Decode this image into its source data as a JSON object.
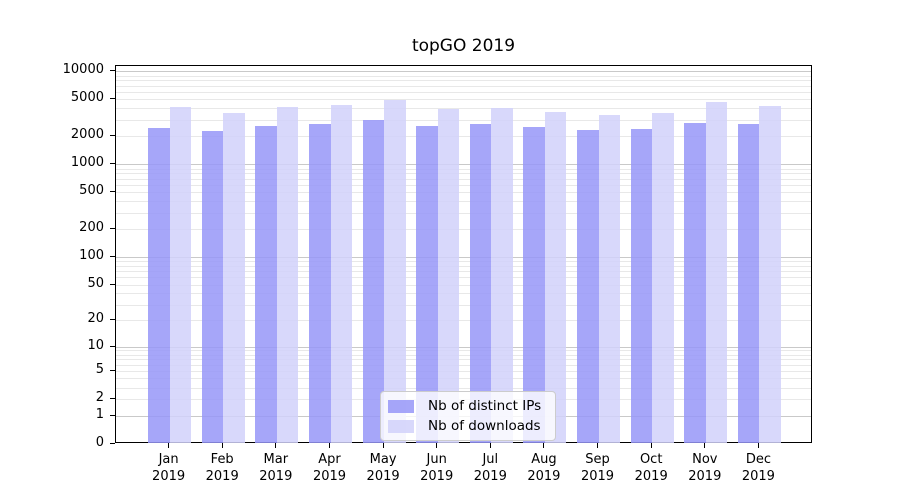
{
  "figure": {
    "title": "topGO 2019"
  },
  "chart_data": {
    "type": "bar",
    "title": "topGO 2019",
    "categories": [
      "Jan 2019",
      "Feb 2019",
      "Mar 2019",
      "Apr 2019",
      "May 2019",
      "Jun 2019",
      "Jul 2019",
      "Aug 2019",
      "Sep 2019",
      "Oct 2019",
      "Nov 2019",
      "Dec 2019"
    ],
    "series": [
      {
        "name": "Nb of distinct IPs",
        "color": "#9696f8",
        "opacity": 0.85,
        "values": [
          2450,
          2300,
          2600,
          2700,
          3000,
          2600,
          2700,
          2500,
          2350,
          2400,
          2750,
          2700
        ]
      },
      {
        "name": "Nb of downloads",
        "color": "#d1d1fa",
        "opacity": 0.85,
        "values": [
          4150,
          3550,
          4100,
          4300,
          4900,
          3900,
          4050,
          3650,
          3350,
          3600,
          4700,
          4250
        ]
      }
    ],
    "yscale": "log1p",
    "ylim": [
      0,
      10000
    ],
    "yticks": [
      0,
      1,
      2,
      5,
      10,
      20,
      50,
      100,
      200,
      500,
      1000,
      2000,
      5000,
      10000
    ],
    "grid": true,
    "grid_major_color": "#c9c9c9",
    "grid_minor_color": "#e8e8e8",
    "axis_color": "#000000",
    "legend_position": "lower center",
    "legend_labels": [
      "Nb of distinct IPs",
      "Nb of downloads"
    ]
  }
}
